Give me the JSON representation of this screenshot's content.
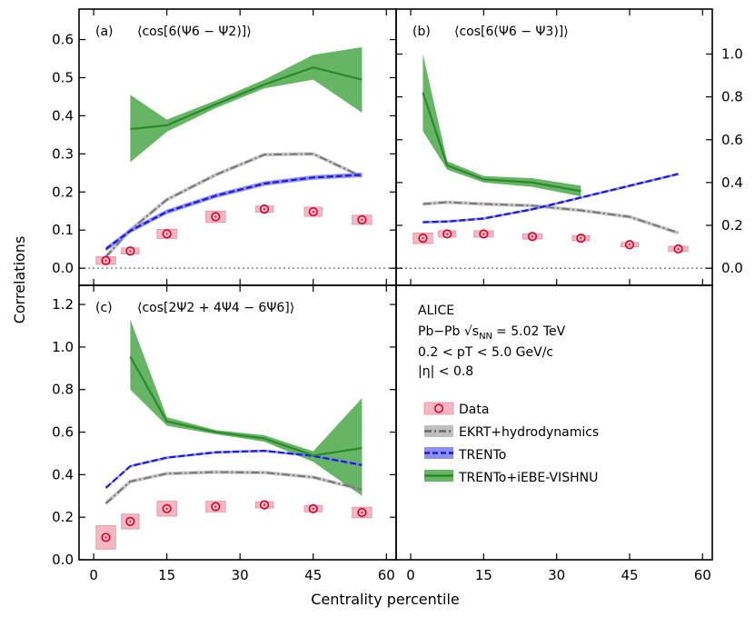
{
  "figure": {
    "x_axis_label": "Centrality percentile",
    "y_axis_label": "Correlations"
  },
  "info": {
    "experiment": "ALICE",
    "system_prefix": "Pb−Pb",
    "sqrt_s": "√s",
    "sqrt_s_sub": "NN",
    "energy": "= 5.02 TeV",
    "pt_range": "0.2 < pT < 5.0 GeV/c",
    "eta_range": "|η| < 0.8"
  },
  "legend": [
    {
      "key": "data",
      "label": "Data"
    },
    {
      "key": "ekrt",
      "label": "EKRT+hydrodynamics"
    },
    {
      "key": "trento",
      "label": "TRENTo"
    },
    {
      "key": "vishnu",
      "label": "TRENTo+iEBE-VISHNU"
    }
  ],
  "colors": {
    "data_marker": "#d6002a",
    "data_box": "#f4b8c2",
    "ekrt": "#888888",
    "trento": "#1a1adc",
    "trento_band": "#7a7aee",
    "vishnu": "#2a8a2a",
    "vishnu_band": "#4aa84a"
  },
  "chart_data": [
    {
      "panel": "a",
      "panel_label": "(a)",
      "title": "⟨cos[6(Ψ6 − Ψ2)]⟩",
      "type": "line",
      "x_ticks": [
        0,
        15,
        30,
        45,
        60
      ],
      "y_ticks": [
        0.0,
        0.1,
        0.2,
        0.3,
        0.4,
        0.5,
        0.6
      ],
      "y_axis_side": "left",
      "xlim": [
        -3,
        62
      ],
      "ylim": [
        -0.045,
        0.68
      ],
      "zero_line": true,
      "data": {
        "x": [
          2.5,
          7.5,
          15,
          25,
          35,
          45,
          55
        ],
        "y": [
          0.02,
          0.045,
          0.09,
          0.135,
          0.155,
          0.148,
          0.127
        ],
        "box_halfwidth": [
          2.0,
          1.8,
          2.0,
          2.0,
          1.8,
          1.8,
          2.0
        ],
        "box_err": [
          0.01,
          0.008,
          0.012,
          0.015,
          0.008,
          0.012,
          0.012
        ]
      },
      "ekrt": {
        "x": [
          2.5,
          7.5,
          15,
          25,
          35,
          45,
          55
        ],
        "y": [
          0.03,
          0.1,
          0.18,
          0.245,
          0.298,
          0.3,
          0.24
        ]
      },
      "trento": {
        "x": [
          2.5,
          7.5,
          15,
          25,
          35,
          45,
          55
        ],
        "y": [
          0.05,
          0.098,
          0.148,
          0.19,
          0.222,
          0.238,
          0.245
        ],
        "err": 0.006
      },
      "vishnu": {
        "x": [
          7.5,
          15,
          25,
          35,
          45,
          55
        ],
        "y": [
          0.365,
          0.375,
          0.43,
          0.482,
          0.527,
          0.495
        ],
        "lo": [
          0.278,
          0.358,
          0.42,
          0.472,
          0.495,
          0.408
        ],
        "hi": [
          0.455,
          0.39,
          0.44,
          0.495,
          0.56,
          0.58
        ]
      }
    },
    {
      "panel": "b",
      "panel_label": "(b)",
      "title": "⟨cos[6(Ψ6 − Ψ3)]⟩",
      "type": "line",
      "x_ticks": [
        0,
        15,
        30,
        45,
        60
      ],
      "y_ticks": [
        0.0,
        0.2,
        0.4,
        0.6,
        0.8,
        1.0
      ],
      "y_axis_side": "right",
      "xlim": [
        -3,
        62
      ],
      "ylim": [
        -0.08,
        1.21
      ],
      "zero_line": true,
      "data": {
        "x": [
          2.5,
          7.5,
          15,
          25,
          35,
          45,
          55
        ],
        "y": [
          0.14,
          0.16,
          0.16,
          0.148,
          0.14,
          0.11,
          0.09
        ],
        "box_halfwidth": [
          2.0,
          1.8,
          2.0,
          2.0,
          1.8,
          1.8,
          2.0
        ],
        "box_err": [
          0.025,
          0.015,
          0.015,
          0.012,
          0.012,
          0.01,
          0.012
        ]
      },
      "ekrt": {
        "x": [
          2.5,
          7.5,
          15,
          25,
          35,
          45,
          55
        ],
        "y": [
          0.3,
          0.308,
          0.3,
          0.292,
          0.27,
          0.24,
          0.165
        ]
      },
      "trento": {
        "x": [
          2.5,
          7.5,
          15,
          25,
          35,
          45,
          55
        ],
        "y": [
          0.215,
          0.218,
          0.232,
          0.275,
          0.33,
          0.385,
          0.44
        ],
        "err": 0.006
      },
      "vishnu": {
        "x": [
          2.5,
          7.5,
          15,
          25,
          35
        ],
        "y": [
          0.82,
          0.48,
          0.415,
          0.4,
          0.36
        ],
        "lo": [
          0.64,
          0.46,
          0.4,
          0.38,
          0.335
        ],
        "hi": [
          1.0,
          0.5,
          0.43,
          0.42,
          0.385
        ]
      }
    },
    {
      "panel": "c",
      "panel_label": "(c)",
      "title": "⟨cos[2Ψ2 + 4Ψ4 − 6Ψ6]⟩",
      "type": "line",
      "x_ticks": [
        0,
        15,
        30,
        45,
        60
      ],
      "y_ticks": [
        0.0,
        0.2,
        0.4,
        0.6,
        0.8,
        1.0,
        1.2
      ],
      "y_axis_side": "left",
      "xlim": [
        -3,
        62
      ],
      "ylim": [
        0.0,
        1.29
      ],
      "zero_line": false,
      "data": {
        "x": [
          2.5,
          7.5,
          15,
          25,
          35,
          45,
          55
        ],
        "y": [
          0.105,
          0.18,
          0.24,
          0.25,
          0.258,
          0.24,
          0.222
        ],
        "box_halfwidth": [
          2.0,
          1.8,
          2.0,
          2.0,
          1.8,
          1.8,
          2.0
        ],
        "box_err": [
          0.055,
          0.035,
          0.035,
          0.025,
          0.015,
          0.015,
          0.025
        ]
      },
      "ekrt": {
        "x": [
          2.5,
          7.5,
          15,
          25,
          35,
          45,
          55
        ],
        "y": [
          0.265,
          0.368,
          0.405,
          0.412,
          0.41,
          0.388,
          0.33
        ]
      },
      "trento": {
        "x": [
          2.5,
          7.5,
          15,
          25,
          35,
          45,
          55
        ],
        "y": [
          0.338,
          0.44,
          0.48,
          0.505,
          0.512,
          0.488,
          0.445
        ],
        "err": 0.006
      },
      "vishnu": {
        "x": [
          7.5,
          15,
          25,
          35,
          45,
          55
        ],
        "y": [
          0.955,
          0.65,
          0.6,
          0.57,
          0.49,
          0.525
        ],
        "lo": [
          0.8,
          0.63,
          0.59,
          0.555,
          0.46,
          0.3
        ],
        "hi": [
          1.13,
          0.67,
          0.61,
          0.585,
          0.51,
          0.76
        ]
      }
    }
  ]
}
